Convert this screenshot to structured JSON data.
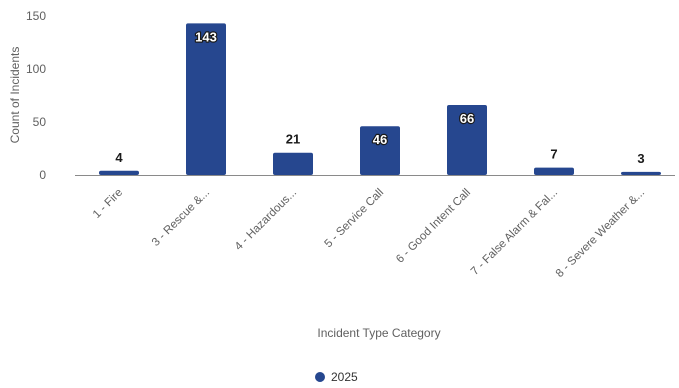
{
  "chart_data": {
    "type": "bar",
    "title": "",
    "xlabel": "Incident Type Category",
    "ylabel": "Count of Incidents",
    "ylim": [
      0,
      150
    ],
    "yticks": [
      0,
      50,
      100,
      150
    ],
    "grid": false,
    "legend_position": "bottom",
    "categories": [
      "1 - Fire",
      "3 - Rescue &...",
      "4 - Hazardous...",
      "5 - Service Call",
      "6 - Good Intent Call",
      "7 - False Alarm & Fal...",
      "8 - Severe Weather &..."
    ],
    "series": [
      {
        "name": "2025",
        "values": [
          4,
          143,
          21,
          46,
          66,
          7,
          3
        ],
        "color": "#26478f"
      }
    ]
  }
}
